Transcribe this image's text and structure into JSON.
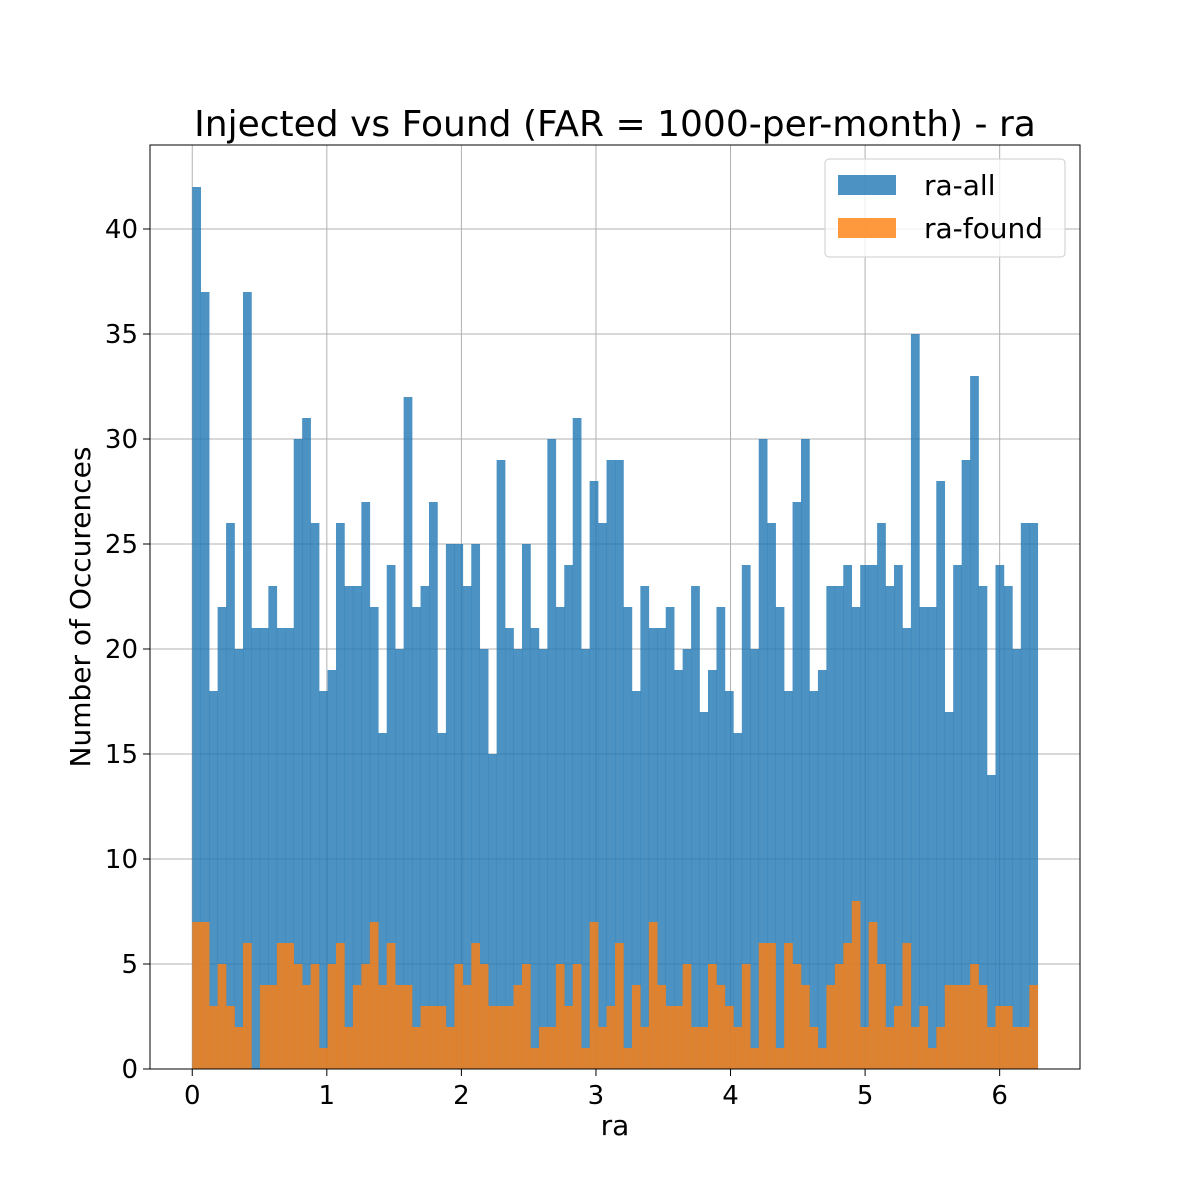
{
  "chart_data": {
    "type": "histogram",
    "title": "Injected vs Found (FAR = 1000-per-month) - ra",
    "xlabel": "ra",
    "ylabel": "Number of Occurences",
    "xlim": [
      -0.314,
      6.597
    ],
    "ylim": [
      0,
      44
    ],
    "xticks": [
      0,
      1,
      2,
      3,
      4,
      5,
      6
    ],
    "yticks": [
      0,
      5,
      10,
      15,
      20,
      25,
      30,
      35,
      40
    ],
    "grid": true,
    "legend_position": "top-right",
    "bin_range": [
      0,
      6.283
    ],
    "series": [
      {
        "name": "ra-all",
        "color": "#1f77b4",
        "alpha": 0.8,
        "values": [
          42,
          37,
          18,
          22,
          26,
          20,
          37,
          21,
          21,
          23,
          21,
          21,
          30,
          31,
          26,
          18,
          19,
          26,
          23,
          23,
          27,
          22,
          16,
          24,
          20,
          32,
          22,
          23,
          27,
          16,
          25,
          25,
          23,
          25,
          20,
          15,
          29,
          21,
          20,
          25,
          21,
          20,
          30,
          22,
          24,
          31,
          20,
          28,
          26,
          29,
          29,
          22,
          18,
          23,
          21,
          21,
          22,
          19,
          20,
          23,
          17,
          19,
          22,
          18,
          16,
          24,
          20,
          30,
          26,
          22,
          18,
          27,
          30,
          18,
          19,
          23,
          23,
          24,
          22,
          24,
          24,
          26,
          23,
          24,
          21,
          35,
          22,
          22,
          28,
          17,
          24,
          29,
          33,
          23,
          14,
          24,
          23,
          20,
          26,
          26
        ]
      },
      {
        "name": "ra-found",
        "color": "#ff7f0e",
        "alpha": 0.8,
        "values": [
          7,
          7,
          3,
          5,
          3,
          2,
          6,
          0,
          4,
          4,
          6,
          6,
          5,
          4,
          5,
          1,
          5,
          6,
          2,
          4,
          5,
          7,
          4,
          6,
          4,
          4,
          2,
          3,
          3,
          3,
          2,
          5,
          4,
          6,
          5,
          3,
          3,
          3,
          4,
          5,
          1,
          2,
          2,
          5,
          3,
          5,
          1,
          7,
          2,
          3,
          6,
          1,
          4,
          2,
          7,
          4,
          3,
          3,
          5,
          2,
          2,
          5,
          4,
          3,
          2,
          5,
          1,
          6,
          6,
          1,
          6,
          5,
          4,
          2,
          1,
          4,
          5,
          6,
          8,
          2,
          7,
          5,
          2,
          3,
          6,
          2,
          3,
          1,
          2,
          4,
          4,
          4,
          5,
          4,
          2,
          3,
          3,
          2,
          2,
          4
        ]
      }
    ]
  }
}
